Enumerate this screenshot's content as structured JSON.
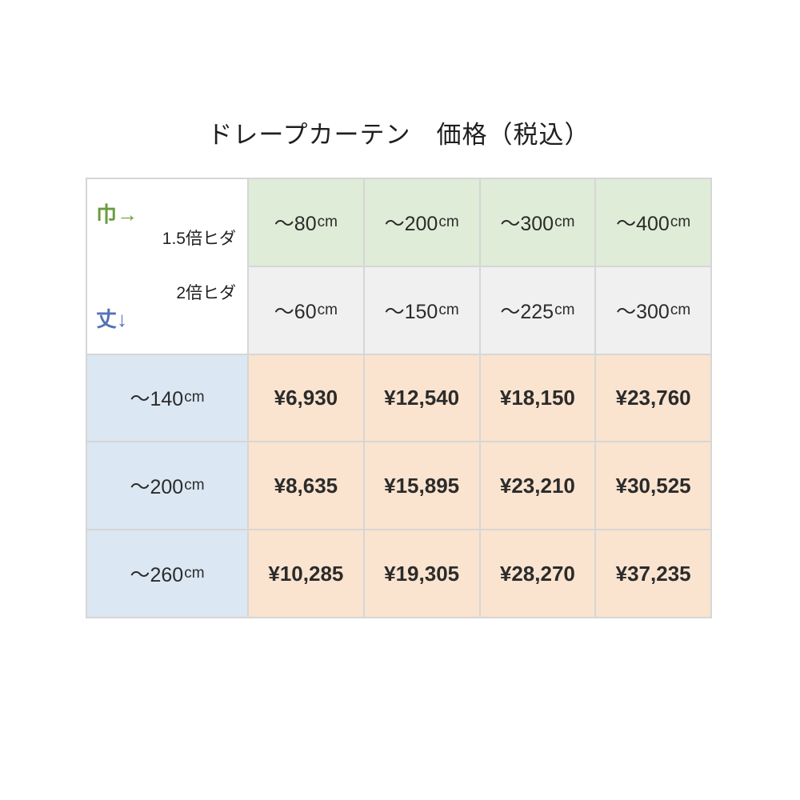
{
  "title": "ドレープカーテン　価格（税込）",
  "colors": {
    "header_15_bg": "#dfecd8",
    "header_2_bg": "#f0f0f0",
    "height_col_bg": "#dbe7f2",
    "price_bg": "#fae4cf",
    "width_axis_color": "#6a9b40",
    "height_axis_color": "#5571b6",
    "grid_border": "#d6d6d6"
  },
  "table": {
    "corner": {
      "width_axis_label": "巾→",
      "pleat_15_label": "1.5倍ヒダ",
      "pleat_2_label": "2倍ヒダ",
      "height_axis_label": "丈↓"
    },
    "header_15": [
      {
        "range": "～80",
        "unit": "cm"
      },
      {
        "range": "～200",
        "unit": "cm"
      },
      {
        "range": "～300",
        "unit": "cm"
      },
      {
        "range": "～400",
        "unit": "cm"
      }
    ],
    "header_2": [
      {
        "range": "～60",
        "unit": "cm"
      },
      {
        "range": "～150",
        "unit": "cm"
      },
      {
        "range": "～225",
        "unit": "cm"
      },
      {
        "range": "～300",
        "unit": "cm"
      }
    ],
    "rows": [
      {
        "height_range": "～140",
        "unit": "cm",
        "prices": [
          "¥6,930",
          "¥12,540",
          "¥18,150",
          "¥23,760"
        ]
      },
      {
        "height_range": "～200",
        "unit": "cm",
        "prices": [
          "¥8,635",
          "¥15,895",
          "¥23,210",
          "¥30,525"
        ]
      },
      {
        "height_range": "～260",
        "unit": "cm",
        "prices": [
          "¥10,285",
          "¥19,305",
          "¥28,270",
          "¥37,235"
        ]
      }
    ]
  },
  "chart_data": {
    "type": "table",
    "title": "ドレープカーテン　価格（税込）",
    "col_axis_label": "巾",
    "row_axis_label": "丈",
    "column_groups": [
      {
        "pleat": "1.5倍ヒダ",
        "widths": [
          "～80cm",
          "～200cm",
          "～300cm",
          "～400cm"
        ]
      },
      {
        "pleat": "2倍ヒダ",
        "widths": [
          "～60cm",
          "～150cm",
          "～225cm",
          "～300cm"
        ]
      }
    ],
    "rows": [
      {
        "height": "～140cm",
        "prices_yen": [
          6930,
          12540,
          18150,
          23760
        ]
      },
      {
        "height": "～200cm",
        "prices_yen": [
          8635,
          15895,
          23210,
          30525
        ]
      },
      {
        "height": "～260cm",
        "prices_yen": [
          10285,
          19305,
          28270,
          37235
        ]
      }
    ]
  }
}
